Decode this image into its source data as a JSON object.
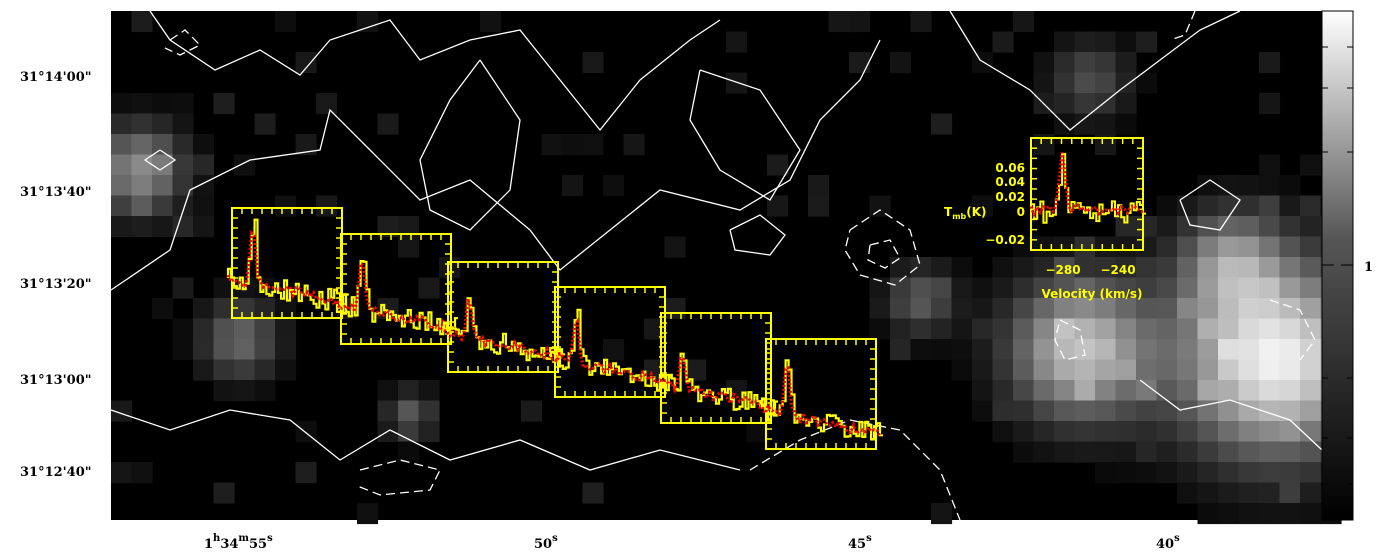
{
  "chart_data": {
    "type": "heatmap",
    "title": "",
    "coordinate_labels": {
      "dec_ticks": [
        "31°14'00\"",
        "31°13'40\"",
        "31°13'20\"",
        "31°13'00\"",
        "31°12'40\""
      ],
      "ra_ticks": [
        {
          "prefix": "1",
          "sup1": "h",
          "mid": "34",
          "sup2": "m",
          "tail": "55",
          "sup3": "s"
        },
        {
          "prefix": "",
          "sup1": "",
          "mid": "",
          "sup2": "",
          "tail": "50",
          "sup3": "s"
        },
        {
          "prefix": "",
          "sup1": "",
          "mid": "",
          "sup2": "",
          "tail": "45",
          "sup3": "s"
        },
        {
          "prefix": "",
          "sup1": "",
          "mid": "",
          "sup2": "",
          "tail": "40",
          "sup3": "s"
        }
      ]
    },
    "colorbar": {
      "tick_label": "1",
      "colormap": "black-to-white"
    },
    "inset_spectrum": {
      "ylabel": "T",
      "ylabel_sub": "mb",
      "ylabel_unit": "(K)",
      "y_ticks": [
        "0.06",
        "0.04",
        "0.02",
        "0",
        "−0.02"
      ],
      "x_ticks": [
        "−280",
        "−240"
      ],
      "xlabel": "Velocity (km/s)"
    },
    "spectra": {
      "count": 6,
      "colors": {
        "observed": "#ffff00",
        "model": "#ff0000",
        "box": "#ffff00"
      },
      "peaks": [
        {
          "peak_height": 0.62
        },
        {
          "peak_height": 0.55
        },
        {
          "peak_height": 0.4
        },
        {
          "peak_height": 0.45
        },
        {
          "peak_height": 0.3
        },
        {
          "peak_height": 0.58
        }
      ]
    },
    "contours": {
      "color": "#ffffff",
      "styles": [
        "solid",
        "dashed"
      ]
    }
  }
}
